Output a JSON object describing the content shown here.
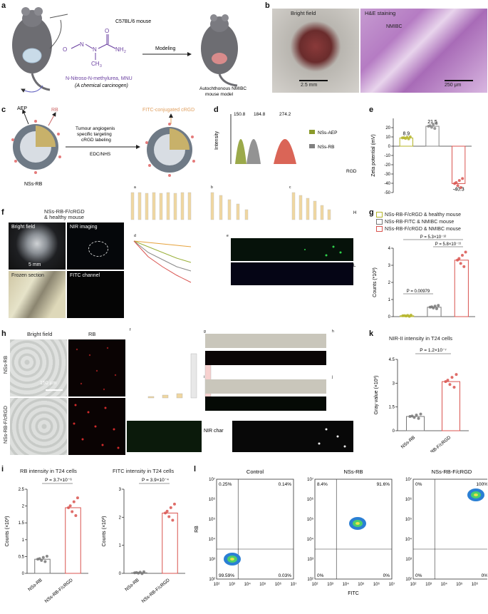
{
  "panels": {
    "a": {
      "letter": "a",
      "mouse_strain": "C57BL/6 mouse",
      "carcinogen_name": "N-Nitroso-N-methylurea, MNU",
      "carcinogen_desc": "(A chemical carcinogen)",
      "arrow_label": "Modeling",
      "result_label_1": "Autochthonous NMIBC",
      "result_label_2": "mouse model",
      "formula_nh2": "NH",
      "formula_nh2_sub": "2",
      "formula_ch3": "CH",
      "formula_ch3_sub": "3",
      "formula_o1": "O",
      "formula_o2": "O",
      "formula_n1": "N",
      "formula_n2": "N",
      "formula_n3": "N"
    },
    "b": {
      "letter": "b",
      "left_title": "Bright field",
      "right_title": "H&E staining",
      "tumor_label": "NMIBC",
      "scale_left": "2.5 mm",
      "scale_right": "250 μm"
    },
    "c": {
      "letter": "c",
      "label_aep": "AEP",
      "label_rb": "RB",
      "label_fitc": "FITC-conjugated cRGD",
      "arrow_top_1": "Tumour angiogenis",
      "arrow_top_2": "specific targeting",
      "arrow_top_3": "cRGD labeling",
      "arrow_bottom": "EDC/NHS",
      "particle_label": "NSs-RB"
    },
    "d": {
      "letter": "d",
      "ylabel": "Intensity",
      "peak_labels": [
        "150.8",
        "184.8",
        "274.2"
      ],
      "legend": [
        "NSs-AEP",
        "NSs-RB"
      ],
      "legend_colors": [
        "#8a9a2a",
        "#808080"
      ],
      "overlap_text": "RGD"
    },
    "e": {
      "letter": "e",
      "ylabel": "Zeta potential (mV)",
      "value_labels": [
        "8.9",
        "21.5",
        "-40.3"
      ]
    },
    "f": {
      "letter": "f",
      "title": "NSs-RB-F/cRGD",
      "title2": "& healthy mouse",
      "tiles": [
        "Bright field",
        "NIR imaging",
        "Frozen section",
        "FITC channel"
      ],
      "scale": "5 mm"
    },
    "g": {
      "letter": "g",
      "legend": [
        "NSs-RB-F/cRGD & healthy mouse",
        "NSs-RB-FITC & NMIBC mouse",
        "NSs-RB-F/cRGD & NMIBC mouse"
      ],
      "legend_colors": [
        "#b5b52a",
        "#777777",
        "#d9534f"
      ],
      "ylabel": "Counts (*10³)",
      "p_values": [
        "P = 5.3×10⁻¹²",
        "P = 5.8×10⁻¹¹",
        "P = 0.00979"
      ]
    },
    "h": {
      "letter": "h",
      "col_titles": [
        "Bright field",
        "RB"
      ],
      "row_titles": [
        "NSs-RB",
        "NSs-RB-F/cRGD"
      ],
      "scale": "150 μm",
      "overlap_nir": "NIR char"
    },
    "i": {
      "letter": "i",
      "title_left": "RB intensity in T24 cells",
      "title_right": "FITC intensity in T24 cells",
      "p_left": "P = 3.7×10⁻⁶",
      "p_right": "P = 3.9×10⁻⁴",
      "ylabel": "Counts (×10³)",
      "x_labels": [
        "NSs-RB",
        "NSs-RB-F/cRGD"
      ]
    },
    "k": {
      "letter": "k",
      "title": "NIR-II intensity in T24 cells",
      "p": "P = 1.2×10⁻⁷",
      "ylabel": "Gray value (×10³)",
      "x_labels": [
        "NSs-RB",
        "NSs-RB-F/cRGD"
      ]
    },
    "l": {
      "letter": "l",
      "titles": [
        "Control",
        "NSs-RB",
        "NSs-RB-F/cRGD"
      ],
      "quadrants": [
        [
          "0.25%",
          "0.14%",
          "99.59%",
          "0.03%"
        ],
        [
          "8.4%",
          "91.6%",
          "0%",
          "0%"
        ],
        [
          "0%",
          "100%",
          "0%",
          "0%"
        ]
      ],
      "ylabel": "RB",
      "xlabel": "FITC",
      "ticks": [
        "10²",
        "10³",
        "10⁴",
        "10⁵",
        "10⁶",
        "10⁷"
      ]
    },
    "overlap": {
      "small_letters": [
        "a",
        "b",
        "c",
        "d",
        "e",
        "f",
        "g",
        "h",
        "i",
        "j"
      ],
      "right_H": "H",
      "right_L": "L"
    }
  },
  "chart_data": [
    {
      "type": "bar",
      "panel": "e",
      "categories": [
        "NSs-AEP",
        "NSs-RB",
        "NSs-RB-F/cRGD"
      ],
      "values": [
        8.9,
        21.5,
        -40.3
      ],
      "colors": [
        "#b5b52a",
        "#888888",
        "#d9534f"
      ],
      "ylabel": "Zeta potential (mV)",
      "ylim": [
        -50,
        30
      ],
      "yticks": [
        20,
        10,
        0,
        -10,
        -20,
        -30,
        -40,
        -50
      ]
    },
    {
      "type": "bar",
      "panel": "g",
      "categories": [
        "NSs-RB-F/cRGD & healthy mouse",
        "NSs-RB-FITC & NMIBC mouse",
        "NSs-RB-F/cRGD & NMIBC mouse"
      ],
      "values": [
        0.05,
        0.55,
        3.3
      ],
      "colors": [
        "#b5b52a",
        "#777777",
        "#d9534f"
      ],
      "ylabel": "Counts (*10³)",
      "ylim": [
        0,
        4
      ],
      "yticks": [
        0,
        1,
        2,
        3,
        4
      ]
    },
    {
      "type": "bar",
      "panel": "i-left",
      "title": "RB intensity in T24 cells",
      "categories": [
        "NSs-RB",
        "NSs-RB-F/cRGD"
      ],
      "values": [
        0.42,
        1.95
      ],
      "ylim": [
        0,
        2.5
      ],
      "yticks": [
        0,
        0.5,
        1.0,
        1.5,
        2.0,
        2.5
      ],
      "ylabel": "Counts (×10³)"
    },
    {
      "type": "bar",
      "panel": "i-right",
      "title": "FITC intensity in T24 cells",
      "categories": [
        "NSs-RB",
        "NSs-RB-F/cRGD"
      ],
      "values": [
        0.02,
        2.15
      ],
      "ylim": [
        0,
        3.0
      ],
      "yticks": [
        0,
        1.0,
        2.0,
        3.0
      ],
      "ylabel": "Counts (×10³)"
    },
    {
      "type": "bar",
      "panel": "k",
      "title": "NIR-II intensity in T24 cells",
      "categories": [
        "NSs-RB",
        "NSs-RB-F/cRGD"
      ],
      "values": [
        0.9,
        3.1
      ],
      "ylim": [
        0,
        4.5
      ],
      "yticks": [
        0,
        1.5,
        3.0,
        4.5
      ],
      "ylabel": "Gray value (×10³)"
    }
  ]
}
